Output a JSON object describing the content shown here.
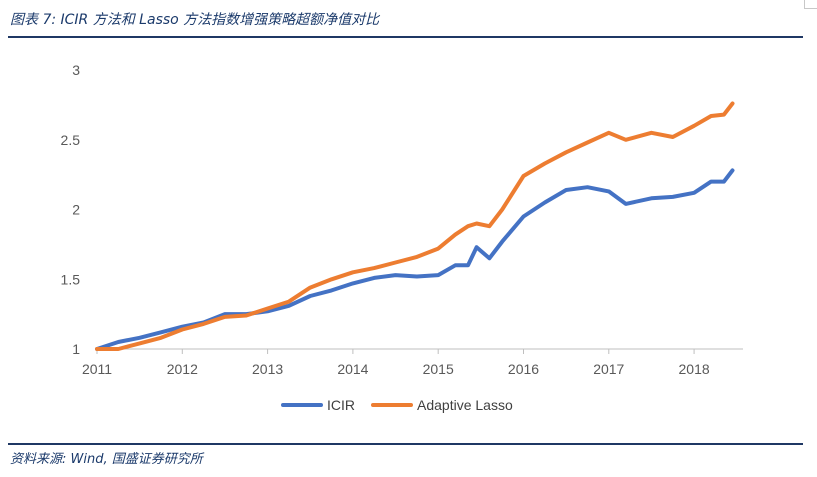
{
  "title": "图表 7:  ICIR 方法和 Lasso 方法指数增强策略超额净值对比",
  "source": "资料来源:  Wind,  国盛证券研究所",
  "colors": {
    "ICIR": "#4472c4",
    "Adaptive Lasso": "#ed7d31",
    "rule": "#1f3864"
  },
  "chart_data": {
    "type": "line",
    "title": "",
    "xlabel": "",
    "ylabel": "",
    "xlim": [
      2011,
      2018.55
    ],
    "ylim": [
      1,
      3
    ],
    "x_ticks": [
      "2011",
      "2012",
      "2013",
      "2014",
      "2015",
      "2016",
      "2017",
      "2018"
    ],
    "y_ticks": [
      "1",
      "1.5",
      "2",
      "2.5",
      "3"
    ],
    "grid": false,
    "legend_position": "bottom",
    "x": [
      2011.0,
      2011.25,
      2011.5,
      2011.75,
      2012.0,
      2012.25,
      2012.5,
      2012.75,
      2013.0,
      2013.25,
      2013.5,
      2013.75,
      2014.0,
      2014.25,
      2014.5,
      2014.75,
      2015.0,
      2015.2,
      2015.35,
      2015.45,
      2015.6,
      2015.75,
      2016.0,
      2016.25,
      2016.5,
      2016.75,
      2017.0,
      2017.2,
      2017.5,
      2017.75,
      2018.0,
      2018.2,
      2018.35,
      2018.45
    ],
    "series": [
      {
        "name": "ICIR",
        "values": [
          1.0,
          1.05,
          1.08,
          1.12,
          1.16,
          1.19,
          1.25,
          1.25,
          1.27,
          1.31,
          1.38,
          1.42,
          1.47,
          1.51,
          1.53,
          1.52,
          1.53,
          1.6,
          1.6,
          1.73,
          1.65,
          1.77,
          1.95,
          2.05,
          2.14,
          2.16,
          2.13,
          2.04,
          2.08,
          2.09,
          2.12,
          2.2,
          2.2,
          2.28
        ]
      },
      {
        "name": "Adaptive Lasso",
        "values": [
          1.0,
          1.0,
          1.04,
          1.08,
          1.14,
          1.18,
          1.23,
          1.24,
          1.29,
          1.34,
          1.44,
          1.5,
          1.55,
          1.58,
          1.62,
          1.66,
          1.72,
          1.82,
          1.88,
          1.9,
          1.88,
          2.0,
          2.24,
          2.33,
          2.41,
          2.48,
          2.55,
          2.5,
          2.55,
          2.52,
          2.6,
          2.67,
          2.68,
          2.76
        ]
      }
    ]
  }
}
